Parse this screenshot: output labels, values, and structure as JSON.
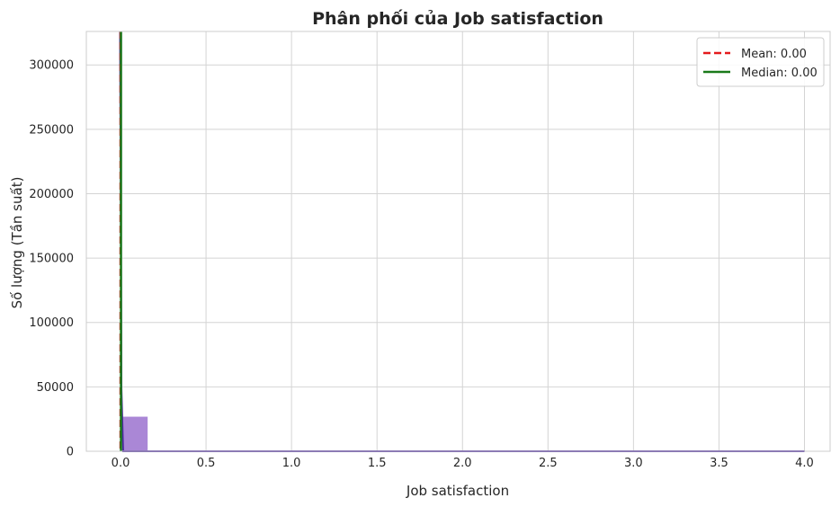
{
  "chart_data": {
    "type": "bar",
    "title": "Phân phối của Job satisfaction",
    "xlabel": "Job satisfaction",
    "ylabel": "Số lượng (Tần suất)",
    "xlim": [
      -0.2,
      4.15
    ],
    "ylim": [
      0,
      326000
    ],
    "x_ticks": [
      "0.0",
      "0.5",
      "1.0",
      "1.5",
      "2.0",
      "2.5",
      "3.0",
      "3.5",
      "4.0"
    ],
    "y_ticks": [
      "0",
      "50000",
      "100000",
      "150000",
      "200000",
      "250000",
      "300000"
    ],
    "grid": true,
    "legend_position": "top-right",
    "bins": [
      {
        "x0": 0.0,
        "x1": 0.01,
        "value": 326000
      },
      {
        "x0": 0.01,
        "x1": 0.16,
        "value": 27000
      },
      {
        "x0": 0.16,
        "x1": 4.0,
        "value": 0
      }
    ],
    "bar_color": "#9b72cf",
    "kde_color": "#4b2a9c",
    "reference_lines": [
      {
        "name": "Mean: 0.00",
        "x": 0.0,
        "color": "#e41a1c",
        "style": "dashed"
      },
      {
        "name": "Median: 0.00",
        "x": 0.0,
        "color": "#1a7a1a",
        "style": "solid"
      }
    ]
  }
}
